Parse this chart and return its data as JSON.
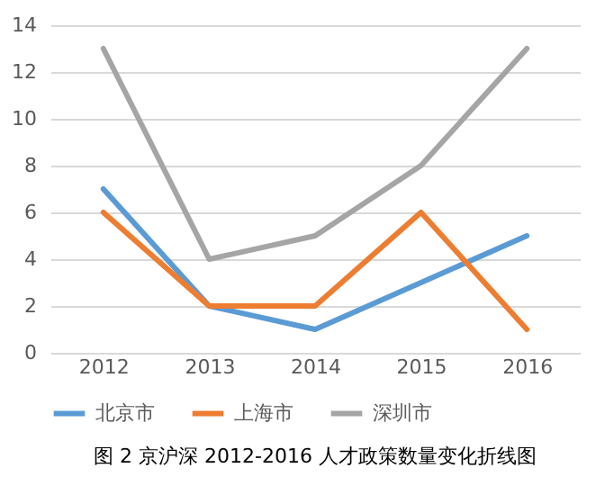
{
  "chart_data": {
    "type": "line",
    "categories": [
      "2012",
      "2013",
      "2014",
      "2015",
      "2016"
    ],
    "series": [
      {
        "name": "北京市",
        "color": "#5b9bd5",
        "values": [
          7,
          2,
          1,
          3,
          5
        ]
      },
      {
        "name": "上海市",
        "color": "#ed7d31",
        "values": [
          6,
          2,
          2,
          6,
          1
        ]
      },
      {
        "name": "深圳市",
        "color": "#a5a5a5",
        "values": [
          13,
          4,
          5,
          8,
          13
        ]
      }
    ],
    "ylim": [
      0,
      14
    ],
    "yticks": [
      0,
      2,
      4,
      6,
      8,
      10,
      12,
      14
    ],
    "grid": "y",
    "legend": "bottom",
    "annotations": [
      "图 2 京沪深 2012-2016 人才政策数量变化折线图"
    ]
  }
}
